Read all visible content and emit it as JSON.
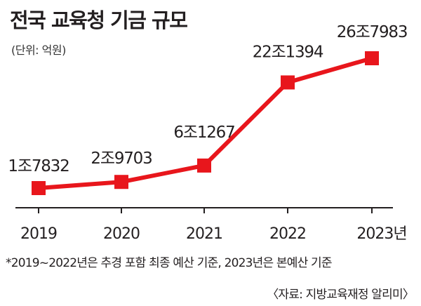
{
  "chart_data": {
    "type": "line",
    "title": "전국 교육청 기금 규모",
    "unit_label": "(단위: 억원)",
    "categories": [
      "2019",
      "2020",
      "2021",
      "2022",
      "2023년"
    ],
    "series": [
      {
        "values": [
          17832,
          29703,
          61267,
          221394,
          267983
        ]
      }
    ],
    "data_labels": [
      "1조7832",
      "2조9703",
      "6조1267",
      "22조1394",
      "26조7983"
    ],
    "ylim": [
      0,
      300000
    ],
    "grid": false,
    "legend": "none",
    "colors": {
      "line": "#e8161c",
      "marker": "#e8161c",
      "axis": "#231f20"
    }
  },
  "footnote": "*2019~2022년은 추경 포함 최종 예산 기준, 2023년은 본예산 기준",
  "source": "〈자료: 지방교육재정 알리미〉"
}
